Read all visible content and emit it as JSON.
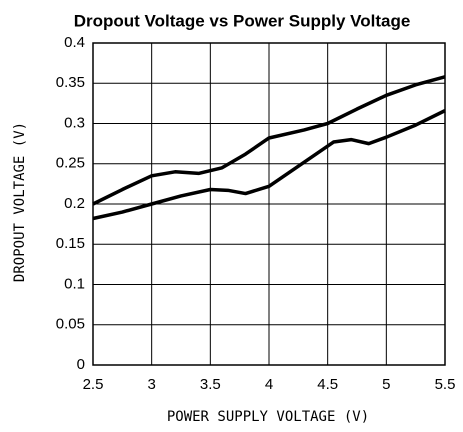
{
  "chart_data": {
    "type": "line",
    "title": "Dropout Voltage vs Power Supply Voltage",
    "xlabel": "POWER SUPPLY VOLTAGE (V)",
    "ylabel": "DROPOUT VOLTAGE (V)",
    "xlim": [
      2.5,
      5.5
    ],
    "xticks": [
      2.5,
      3,
      3.5,
      4,
      4.5,
      5,
      5.5
    ],
    "ylim": [
      0,
      0.4
    ],
    "yticks": [
      0,
      0.05,
      0.1,
      0.15,
      0.2,
      0.25,
      0.3,
      0.35,
      0.4
    ],
    "grid": true,
    "series": [
      {
        "color": "#000000",
        "x": [
          2.5,
          2.75,
          3.0,
          3.2,
          3.4,
          3.6,
          3.8,
          4.0,
          4.3,
          4.5,
          4.75,
          5.0,
          5.25,
          5.5
        ],
        "values": [
          0.2,
          0.218,
          0.235,
          0.24,
          0.238,
          0.245,
          0.262,
          0.282,
          0.292,
          0.3,
          0.318,
          0.335,
          0.348,
          0.358
        ]
      },
      {
        "color": "#000000",
        "x": [
          2.5,
          2.75,
          3.0,
          3.25,
          3.5,
          3.65,
          3.8,
          4.0,
          4.3,
          4.55,
          4.7,
          4.85,
          5.0,
          5.25,
          5.5
        ],
        "values": [
          0.182,
          0.19,
          0.2,
          0.21,
          0.218,
          0.217,
          0.213,
          0.222,
          0.252,
          0.277,
          0.28,
          0.275,
          0.283,
          0.298,
          0.316
        ]
      }
    ]
  }
}
